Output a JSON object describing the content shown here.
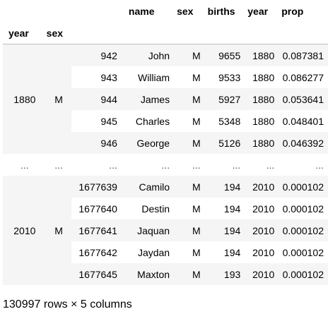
{
  "columns": {
    "index_names": [
      "year",
      "sex"
    ],
    "names": [
      "name",
      "sex",
      "births",
      "year",
      "prop"
    ]
  },
  "groups": [
    {
      "year": "1880",
      "sex": "M",
      "rows": [
        {
          "id": "942",
          "name": "John",
          "sex": "M",
          "births": "9655",
          "year": "1880",
          "prop": "0.087381"
        },
        {
          "id": "943",
          "name": "William",
          "sex": "M",
          "births": "9533",
          "year": "1880",
          "prop": "0.086277"
        },
        {
          "id": "944",
          "name": "James",
          "sex": "M",
          "births": "5927",
          "year": "1880",
          "prop": "0.053641"
        },
        {
          "id": "945",
          "name": "Charles",
          "sex": "M",
          "births": "5348",
          "year": "1880",
          "prop": "0.048401"
        },
        {
          "id": "946",
          "name": "George",
          "sex": "M",
          "births": "5126",
          "year": "1880",
          "prop": "0.046392"
        }
      ]
    },
    {
      "year": "2010",
      "sex": "M",
      "rows": [
        {
          "id": "1677639",
          "name": "Camilo",
          "sex": "M",
          "births": "194",
          "year": "2010",
          "prop": "0.000102"
        },
        {
          "id": "1677640",
          "name": "Destin",
          "sex": "M",
          "births": "194",
          "year": "2010",
          "prop": "0.000102"
        },
        {
          "id": "1677641",
          "name": "Jaquan",
          "sex": "M",
          "births": "194",
          "year": "2010",
          "prop": "0.000102"
        },
        {
          "id": "1677642",
          "name": "Jaydan",
          "sex": "M",
          "births": "194",
          "year": "2010",
          "prop": "0.000102"
        },
        {
          "id": "1677645",
          "name": "Maxton",
          "sex": "M",
          "births": "193",
          "year": "2010",
          "prop": "0.000102"
        }
      ]
    }
  ],
  "ellipsis": "...",
  "shape_caption": "130997 rows × 5 columns"
}
